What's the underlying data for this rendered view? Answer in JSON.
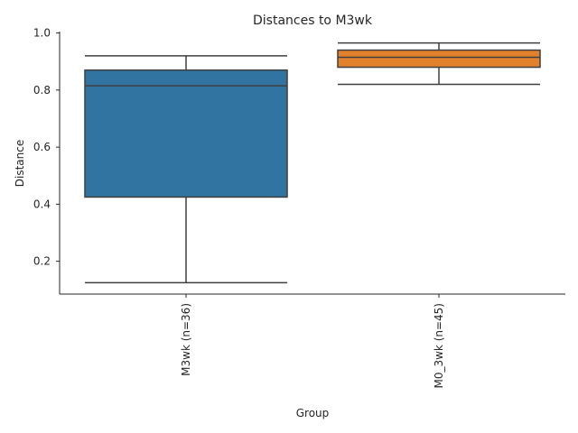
{
  "chart_data": {
    "type": "box",
    "title": "Distances to M3wk",
    "xlabel": "Group",
    "ylabel": "Distance",
    "ylim": [
      0.085,
      1.005
    ],
    "yticks": [
      0.2,
      0.4,
      0.6,
      0.8,
      1.0
    ],
    "ytick_labels": [
      "0.2",
      "0.4",
      "0.6",
      "0.8",
      "1.0"
    ],
    "grid": false,
    "categories": [
      "M3wk (n=36)",
      "M0_3wk (n=45)"
    ],
    "boxes": [
      {
        "label": "M3wk (n=36)",
        "whislo": 0.125,
        "q1": 0.425,
        "med": 0.815,
        "q3": 0.87,
        "whishi": 0.92,
        "color": "#3274a1"
      },
      {
        "label": "M0_3wk (n=45)",
        "whislo": 0.82,
        "q1": 0.88,
        "med": 0.915,
        "q3": 0.94,
        "whishi": 0.965,
        "color": "#e1812c"
      }
    ]
  }
}
